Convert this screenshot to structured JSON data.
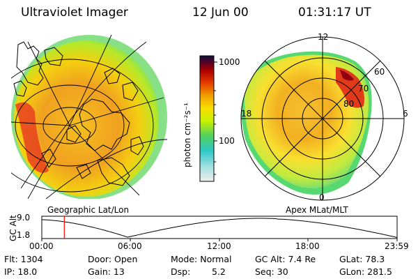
{
  "header": {
    "title": "Ultraviolet Imager",
    "date": "12 Jun 00",
    "time": "01:31:17 UT"
  },
  "left_panel": {
    "caption": "Geographic Lat/Lon"
  },
  "right_panel": {
    "caption": "Apex MLat/MLT",
    "mlt_labels": [
      "12",
      "18",
      "6",
      "0"
    ],
    "lat_labels": [
      "60",
      "70",
      "80"
    ]
  },
  "colorbar": {
    "ticks": [
      "1000",
      "100"
    ],
    "unit_label": "photon cm⁻²s⁻¹",
    "colors": [
      "#e8e8e8",
      "#40d0d0",
      "#60e040",
      "#e8f000",
      "#f0a000",
      "#e83000",
      "#a00000",
      "#101030"
    ]
  },
  "altitude_plot": {
    "ylabel": "GC Alt",
    "yticks": [
      "9.0",
      "1.8"
    ],
    "xticks": [
      "00:00",
      "06:00",
      "12:00",
      "18:00",
      "23:59"
    ],
    "current_time_hours": 1.52,
    "marker_color": "#ff0000"
  },
  "info": {
    "flt": "Flt: 1304",
    "ip": "IP: 18.0",
    "door": "Door: Open",
    "gain": "Gain: 13",
    "mode": "Mode: Normal",
    "dsp_label": "Dsp:",
    "dsp_value": "5.2",
    "gc_alt": "GC Alt: 7.4 Re",
    "seq": "Seq: 30",
    "glat": "GLat: 78.3",
    "glon": "GLon: 281.5"
  }
}
